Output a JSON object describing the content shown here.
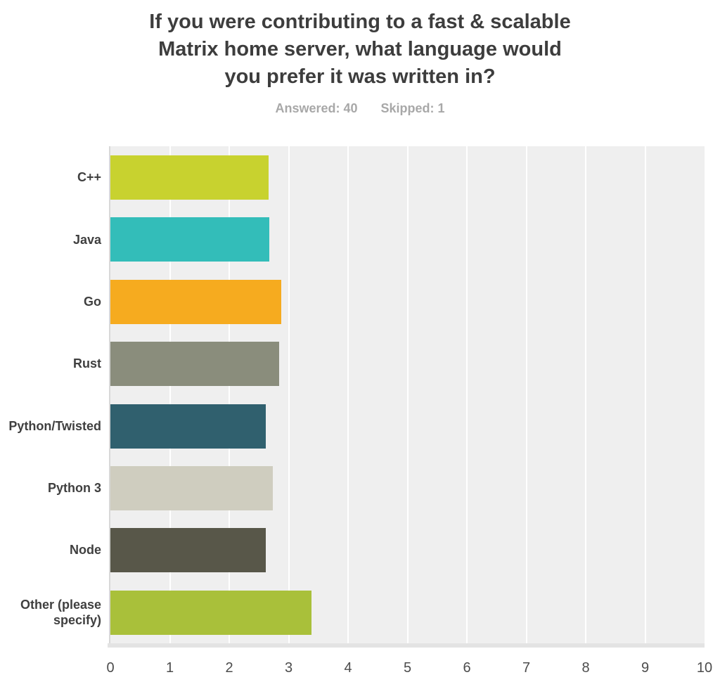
{
  "header": {
    "title_lines": [
      "If you were contributing to a fast & scalable",
      "Matrix home server, what language would",
      "you prefer it was written in?"
    ],
    "answered_label": "Answered: 40",
    "skipped_label": "Skipped: 1"
  },
  "chart_data": {
    "type": "bar",
    "orientation": "horizontal",
    "title": "If you were contributing to a fast & scalable Matrix home server, what language would you prefer it was written in?",
    "answered": 40,
    "skipped": 1,
    "categories": [
      "C++",
      "Java",
      "Go",
      "Rust",
      "Python/Twisted",
      "Python 3",
      "Node",
      "Other (please specify)"
    ],
    "values": [
      2.66,
      2.68,
      2.87,
      2.84,
      2.61,
      2.73,
      2.62,
      3.38
    ],
    "bar_colors": [
      "#c8d22f",
      "#33bdb9",
      "#f6ab1f",
      "#8a8d7c",
      "#30606e",
      "#cfcdbf",
      "#585749",
      "#a9c03a"
    ],
    "xlabel": "",
    "ylabel": "",
    "xlim": [
      0,
      10
    ],
    "x_ticks": [
      0,
      1,
      2,
      3,
      4,
      5,
      6,
      7,
      8,
      9,
      10
    ],
    "grid": "vertical white gridlines at each integer",
    "plot_background": "#efefef",
    "gridline_color": "#ffffff",
    "legend_position": "none"
  }
}
